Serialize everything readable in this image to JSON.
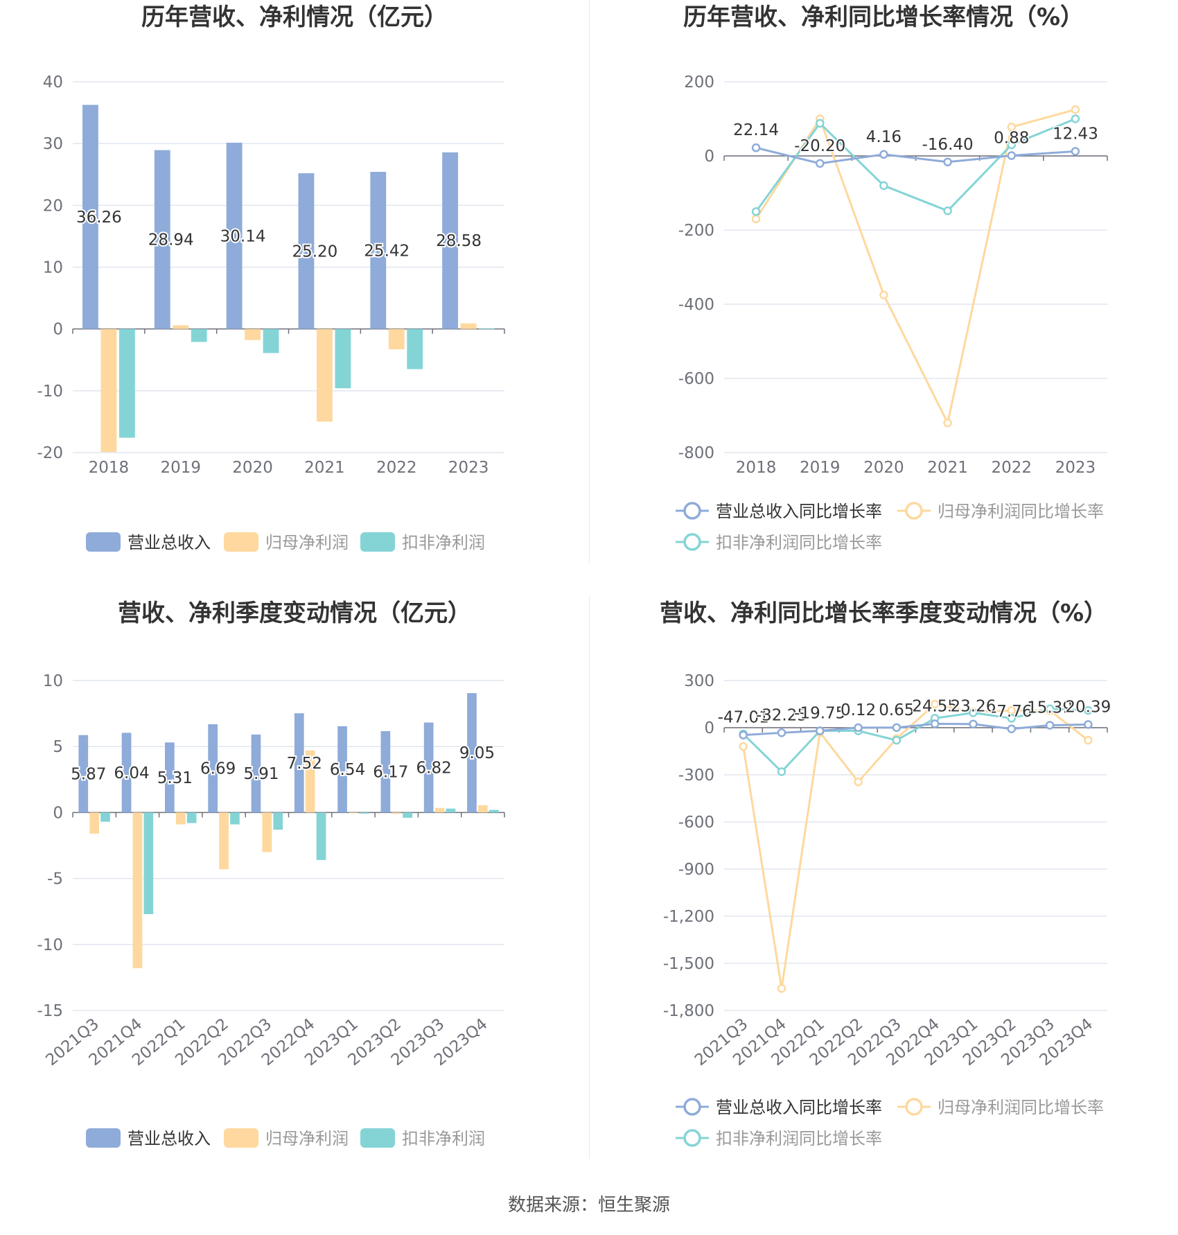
{
  "colors": {
    "revenue": "#8eabd9",
    "net": "#fed89e",
    "deducted": "#84d4d6",
    "grid": "#e1e5ef",
    "axis": "#6e7079",
    "text": "#333333"
  },
  "source": "数据来源：恒生聚源",
  "chart_data": [
    {
      "type": "bar",
      "title": "历年营收、净利情况（亿元）",
      "categories": [
        "2018",
        "2019",
        "2020",
        "2021",
        "2022",
        "2023"
      ],
      "ylim": [
        -20,
        40
      ],
      "yticks": [
        "40",
        "30",
        "20",
        "10",
        "0",
        "-10",
        "-20"
      ],
      "grid": true,
      "legend": "bottom",
      "series": [
        {
          "name": "营业总收入",
          "values": [
            36.26,
            28.94,
            30.14,
            25.2,
            25.42,
            28.58
          ],
          "labels": [
            "36.26",
            "28.94",
            "30.14",
            "25.20",
            "25.42",
            "28.58"
          ]
        },
        {
          "name": "归母净利润",
          "values": [
            -19.9,
            0.6,
            -1.8,
            -15.0,
            -3.3,
            0.9
          ]
        },
        {
          "name": "扣非净利润",
          "values": [
            -17.6,
            -2.1,
            -3.9,
            -9.6,
            -6.5,
            0.1
          ]
        }
      ]
    },
    {
      "type": "line",
      "title": "历年营收、净利同比增长率情况（%）",
      "categories": [
        "2018",
        "2019",
        "2020",
        "2021",
        "2022",
        "2023"
      ],
      "ylim": [
        -800,
        200
      ],
      "yticks": [
        "200",
        "0",
        "-200",
        "-400",
        "-600",
        "-800"
      ],
      "grid": true,
      "legend": "bottom",
      "series": [
        {
          "name": "营业总收入同比增长率",
          "values": [
            22.14,
            -20.2,
            4.16,
            -16.4,
            0.88,
            12.43
          ],
          "labels": [
            "22.14",
            "-20.20",
            "4.16",
            "-16.40",
            "0.88",
            "12.43"
          ]
        },
        {
          "name": "归母净利润同比增长率",
          "values": [
            -170,
            100,
            -375,
            -720,
            78,
            125
          ]
        },
        {
          "name": "扣非净利润同比增长率",
          "values": [
            -150,
            88,
            -80,
            -148,
            30,
            100
          ]
        }
      ]
    },
    {
      "type": "bar",
      "title": "营收、净利季度变动情况（亿元）",
      "categories": [
        "2021Q3",
        "2021Q4",
        "2022Q1",
        "2022Q2",
        "2022Q3",
        "2022Q4",
        "2023Q1",
        "2023Q2",
        "2023Q3",
        "2023Q4"
      ],
      "ylim": [
        -15,
        10
      ],
      "yticks": [
        "10",
        "5",
        "0",
        "-5",
        "-10",
        "-15"
      ],
      "grid": true,
      "legend": "bottom",
      "series": [
        {
          "name": "营业总收入",
          "values": [
            5.87,
            6.04,
            5.31,
            6.69,
            5.91,
            7.52,
            6.54,
            6.17,
            6.82,
            9.05
          ],
          "labels": [
            "5.87",
            "6.04",
            "5.31",
            "6.69",
            "5.91",
            "7.52",
            "6.54",
            "6.17",
            "6.82",
            "9.05"
          ]
        },
        {
          "name": "归母净利润",
          "values": [
            -1.6,
            -11.8,
            -0.9,
            -4.3,
            -3.0,
            4.7,
            -0.05,
            -0.1,
            0.35,
            0.55
          ]
        },
        {
          "name": "扣非净利润",
          "values": [
            -0.7,
            -7.7,
            -0.8,
            -0.9,
            -1.3,
            -3.6,
            -0.08,
            -0.4,
            0.3,
            0.2
          ]
        }
      ]
    },
    {
      "type": "line",
      "title": "营收、净利同比增长率季度变动情况（%）",
      "categories": [
        "2021Q3",
        "2021Q4",
        "2022Q1",
        "2022Q2",
        "2022Q3",
        "2022Q4",
        "2023Q1",
        "2023Q2",
        "2023Q3",
        "2023Q4"
      ],
      "ylim": [
        -1800,
        300
      ],
      "yticks": [
        "300",
        "0",
        "-300",
        "-600",
        "-900",
        "-1,200",
        "-1,500",
        "-1,800"
      ],
      "grid": true,
      "legend": "bottom",
      "series": [
        {
          "name": "营业总收入同比增长率",
          "values": [
            -47.01,
            -32.25,
            -19.75,
            0.12,
            0.65,
            24.55,
            23.26,
            -7.76,
            15.39,
            20.39
          ],
          "labels": [
            "-47.01",
            "-32.25",
            "-19.75",
            "0.12",
            "0.65",
            "24.55",
            "23.26",
            "-7.76",
            "15.39",
            "20.39"
          ]
        },
        {
          "name": "归母净利润同比增长率",
          "values": [
            -120,
            -1660,
            -30,
            -345,
            -70,
            150,
            100,
            110,
            110,
            -80
          ]
        },
        {
          "name": "扣非净利润同比增长率",
          "values": [
            -40,
            -280,
            -20,
            -20,
            -80,
            60,
            95,
            60,
            120,
            110
          ]
        }
      ]
    }
  ]
}
